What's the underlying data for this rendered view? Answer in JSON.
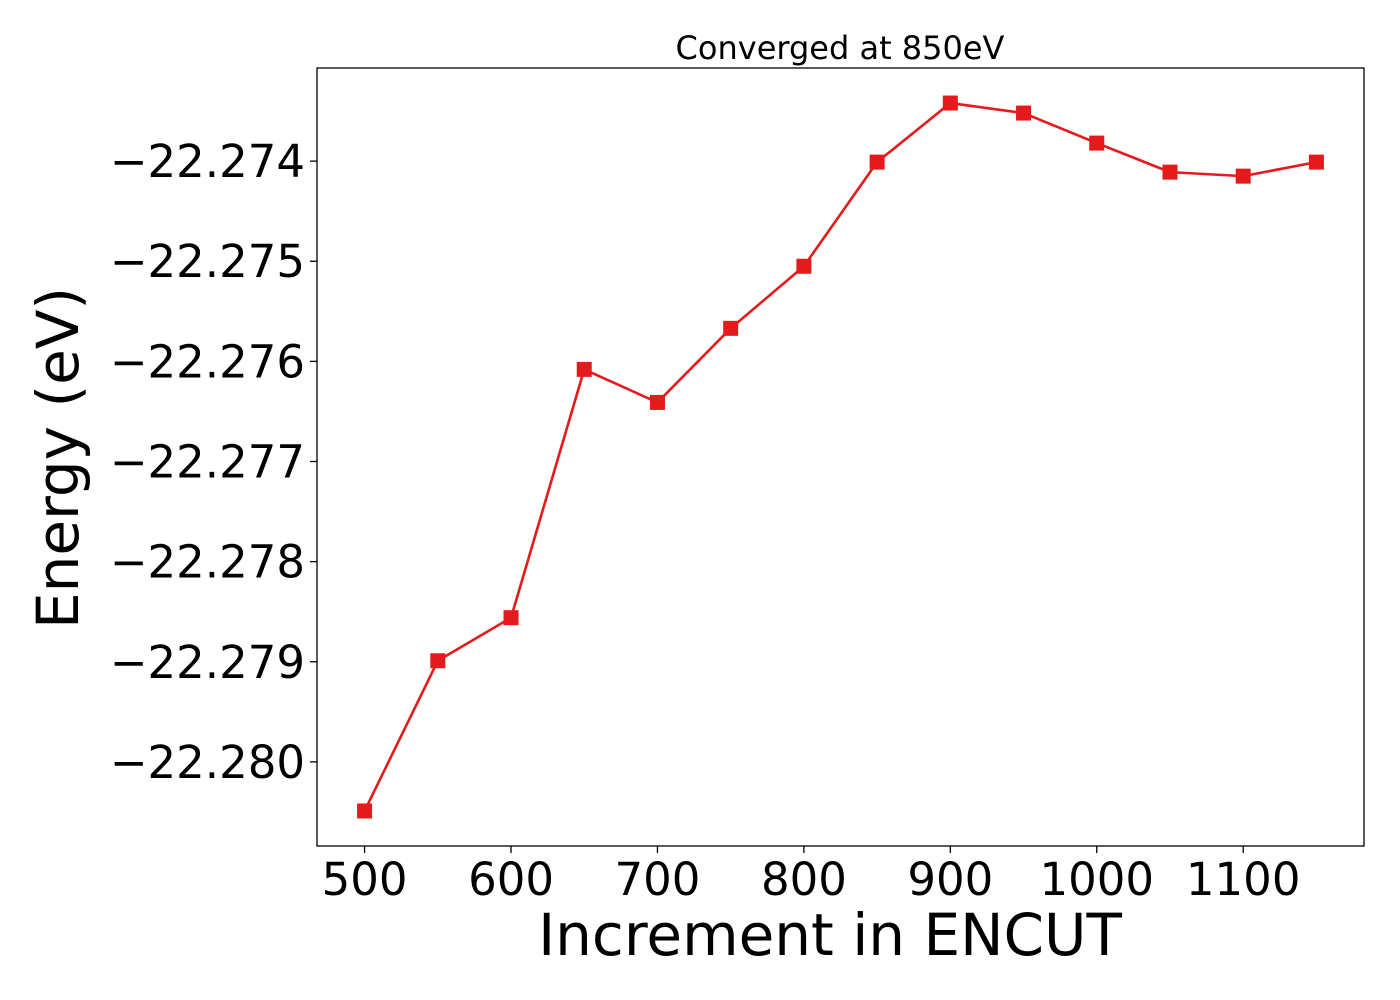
{
  "chart_data": {
    "type": "line",
    "title": "Converged at 850eV",
    "xlabel": "Increment in ENCUT",
    "ylabel": "Energy (eV)",
    "x": [
      500,
      550,
      600,
      650,
      700,
      750,
      800,
      850,
      900,
      950,
      1000,
      1050,
      1100,
      1150
    ],
    "series": [
      {
        "values": [
          -22.28049,
          -22.27899,
          -22.27856,
          -22.27608,
          -22.27641,
          -22.27567,
          -22.27505,
          -22.27401,
          -22.27342,
          -22.27352,
          -22.27382,
          -22.27411,
          -22.27415,
          -22.27401
        ],
        "color": "#e41a1c",
        "marker": "square"
      }
    ],
    "xticks": [
      500,
      600,
      700,
      800,
      900,
      1000,
      1100
    ],
    "yticks": [
      -22.28,
      -22.279,
      -22.278,
      -22.277,
      -22.276,
      -22.275,
      -22.274
    ],
    "ytick_labels": [
      "−22.280",
      "−22.279",
      "−22.278",
      "−22.277",
      "−22.276",
      "−22.275",
      "−22.274"
    ],
    "xlim": [
      467.5,
      1182.5
    ],
    "ylim": [
      -22.28084,
      -22.27307
    ],
    "grid": false,
    "legend": false
  }
}
